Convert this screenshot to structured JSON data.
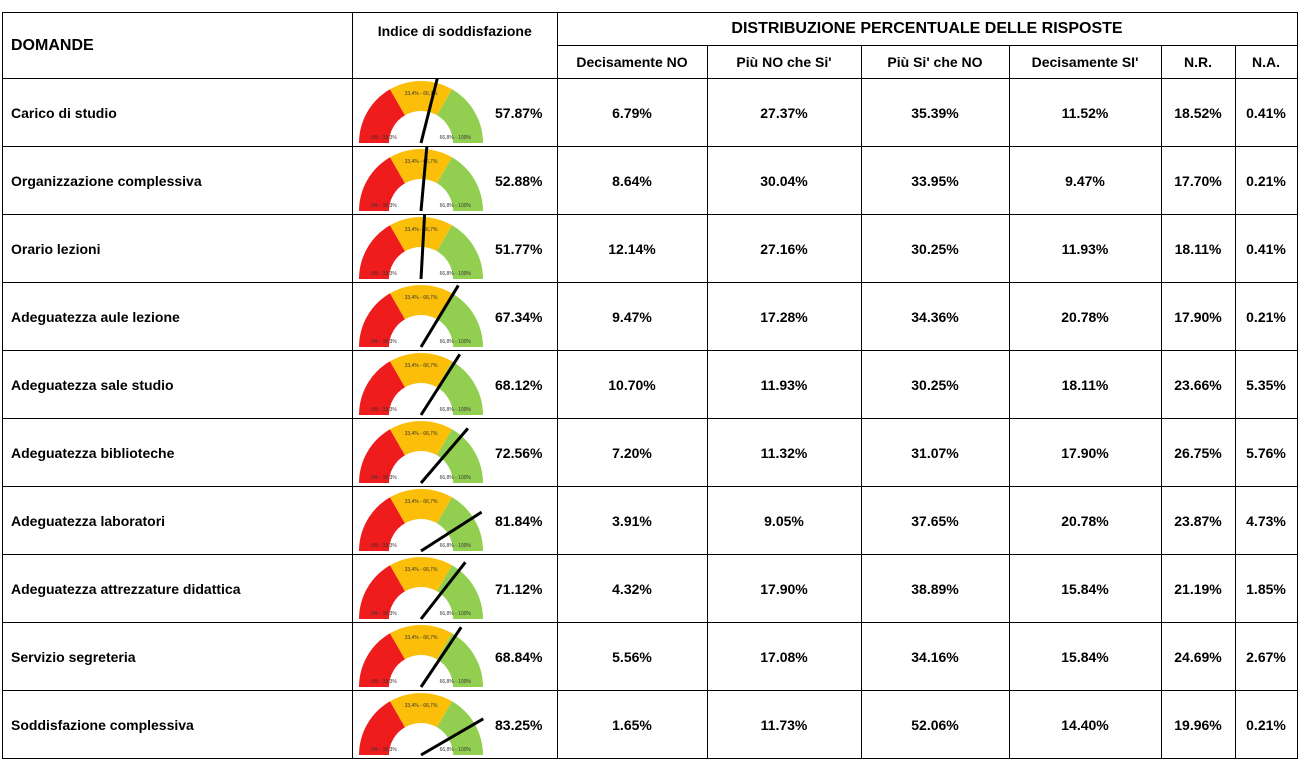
{
  "table": {
    "headers": {
      "questions": "DOMANDE",
      "index": "Indice di soddisfazione",
      "distribution": "DISTRIBUZIONE PERCENTUALE DELLE RISPOSTE",
      "columns": [
        "Decisamente NO",
        "Più NO che Si'",
        "Più Si' che NO",
        "Decisamente SI'",
        "N.R.",
        "N.A."
      ]
    },
    "gauge_bands": [
      "0% - 33,3%",
      "33,4% - 66,7%",
      "66,8% - 100%"
    ],
    "rows": [
      {
        "question": "Carico di studio",
        "index": {
          "value": 57.87,
          "label": "57.87%"
        },
        "values": [
          "6.79%",
          "27.37%",
          "35.39%",
          "11.52%",
          "18.52%",
          "0.41%"
        ]
      },
      {
        "question": "Organizzazione complessiva",
        "index": {
          "value": 52.88,
          "label": "52.88%"
        },
        "values": [
          "8.64%",
          "30.04%",
          "33.95%",
          "9.47%",
          "17.70%",
          "0.21%"
        ]
      },
      {
        "question": "Orario lezioni",
        "index": {
          "value": 51.77,
          "label": "51.77%"
        },
        "values": [
          "12.14%",
          "27.16%",
          "30.25%",
          "11.93%",
          "18.11%",
          "0.41%"
        ]
      },
      {
        "question": "Adeguatezza aule lezione",
        "index": {
          "value": 67.34,
          "label": "67.34%"
        },
        "values": [
          "9.47%",
          "17.28%",
          "34.36%",
          "20.78%",
          "17.90%",
          "0.21%"
        ]
      },
      {
        "question": "Adeguatezza sale studio",
        "index": {
          "value": 68.12,
          "label": "68.12%"
        },
        "values": [
          "10.70%",
          "11.93%",
          "30.25%",
          "18.11%",
          "23.66%",
          "5.35%"
        ]
      },
      {
        "question": "Adeguatezza biblioteche",
        "index": {
          "value": 72.56,
          "label": "72.56%"
        },
        "values": [
          "7.20%",
          "11.32%",
          "31.07%",
          "17.90%",
          "26.75%",
          "5.76%"
        ]
      },
      {
        "question": "Adeguatezza laboratori",
        "index": {
          "value": 81.84,
          "label": "81.84%"
        },
        "values": [
          "3.91%",
          "9.05%",
          "37.65%",
          "20.78%",
          "23.87%",
          "4.73%"
        ]
      },
      {
        "question": "Adeguatezza attrezzature didattica",
        "index": {
          "value": 71.12,
          "label": "71.12%"
        },
        "values": [
          "4.32%",
          "17.90%",
          "38.89%",
          "15.84%",
          "21.19%",
          "1.85%"
        ]
      },
      {
        "question": "Servizio segreteria",
        "index": {
          "value": 68.84,
          "label": "68.84%"
        },
        "values": [
          "5.56%",
          "17.08%",
          "34.16%",
          "15.84%",
          "24.69%",
          "2.67%"
        ]
      },
      {
        "question": "Soddisfazione complessiva",
        "index": {
          "value": 83.25,
          "label": "83.25%"
        },
        "values": [
          "1.65%",
          "11.73%",
          "52.06%",
          "14.40%",
          "19.96%",
          "0.21%"
        ]
      }
    ]
  }
}
